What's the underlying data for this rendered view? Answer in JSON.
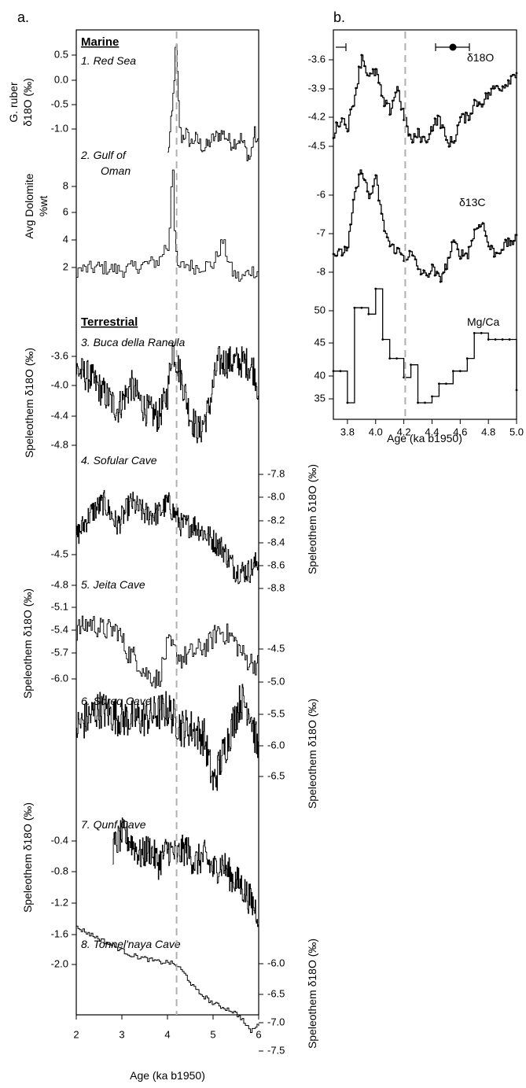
{
  "panel_a": {
    "label": "a.",
    "xlabel": "Age (ka b1950)",
    "xticks": [
      "2",
      "3",
      "4",
      "5",
      "6"
    ],
    "marine_heading": "Marine",
    "terrestrial_heading": "Terrestrial",
    "ylabels": {
      "g_ruber_line1": "G. ruber",
      "g_ruber_line2": "δ18O (‰)",
      "dolomite_line1": "Avg Dolomite",
      "dolomite_line2": "%wt",
      "speleothem": "Speleothem δ18O (‰)"
    },
    "records": [
      {
        "name": "1. Red Sea",
        "yticks": [
          "0.5",
          "0.0",
          "-0.5",
          "-1.0"
        ]
      },
      {
        "name": "2. Gulf of Oman",
        "name_line1": "2. Gulf of",
        "name_line2": "Oman",
        "yticks": [
          "8",
          "6",
          "4",
          "2"
        ]
      },
      {
        "name": "3. Buca della Ranella",
        "yticks": [
          "-3.6",
          "-4.0",
          "-4.4",
          "-4.8"
        ]
      },
      {
        "name": "4. Sofular Cave",
        "yticks": [
          "-7.8",
          "-8.0",
          "-8.2",
          "-8.4",
          "-8.6",
          "-8.8"
        ]
      },
      {
        "name": "5. Jeita Cave",
        "yticks": [
          "-4.5",
          "-4.8",
          "-5.1",
          "-5.4",
          "-5.7",
          "-6.0"
        ]
      },
      {
        "name": "6. Soreq Cave",
        "yticks": [
          "-4.5",
          "-5.0",
          "-5.5",
          "-6.0",
          "-6.5"
        ]
      },
      {
        "name": "7. Qunf Cave",
        "yticks": [
          "-0.4",
          "-0.8",
          "-1.2",
          "-1.6",
          "-2.0"
        ]
      },
      {
        "name": "8. Tonnel'naya Cave",
        "yticks": [
          "-6.0",
          "-6.5",
          "-7.0",
          "-7.5"
        ]
      }
    ]
  },
  "panel_b": {
    "label": "b.",
    "xlabel": "Age (ka b1950)",
    "xticks": [
      "3.8",
      "4.0",
      "4.2",
      "4.4",
      "4.6",
      "4.8",
      "5.0"
    ],
    "series_labels": {
      "d18o": "δ18O",
      "d13c": "δ13C",
      "mgca": "Mg/Ca"
    },
    "d18o_yticks": [
      "-3.6",
      "-3.9",
      "-4.2",
      "-4.5"
    ],
    "d13c_yticks": [
      "-6",
      "-7",
      "-8"
    ],
    "mgca_yticks": [
      "50",
      "45",
      "40",
      "35"
    ]
  },
  "colors": {
    "line": "#000000",
    "event_line": "#b0b0b0"
  },
  "chart_data": [
    {
      "type": "line",
      "panel": "a",
      "xlabel": "Age (ka b1950)",
      "xlim": [
        2,
        6
      ],
      "event_line_x": 4.2,
      "series": [
        {
          "name": "1. Red Sea",
          "ylabel": "G. ruber δ18O (‰)",
          "ylim": [
            -1.5,
            0.9
          ],
          "x": [
            4.0,
            4.05,
            4.1,
            4.15,
            4.18,
            4.2,
            4.25,
            4.3,
            4.4,
            4.5,
            4.6,
            4.8,
            5.0,
            5.2,
            5.4,
            5.6,
            5.8,
            5.9,
            6.0
          ],
          "y": [
            -1.3,
            -0.9,
            -0.5,
            0.3,
            0.85,
            0.4,
            -0.7,
            -1.0,
            -0.9,
            -1.1,
            -1.0,
            -1.2,
            -1.0,
            -0.9,
            -1.1,
            -1.0,
            -1.4,
            -0.9,
            -1.2
          ]
        },
        {
          "name": "2. Gulf of Oman",
          "ylabel": "Avg Dolomite %wt",
          "ylim": [
            0.5,
            10
          ],
          "x": [
            2.0,
            2.5,
            3.0,
            3.5,
            3.8,
            3.95,
            4.0,
            4.05,
            4.1,
            4.15,
            4.2,
            4.4,
            4.6,
            5.0,
            5.2,
            5.4,
            5.6,
            5.8,
            6.0
          ],
          "y": [
            1.6,
            1.8,
            1.6,
            2.0,
            2.2,
            3.2,
            3.0,
            5.2,
            9.6,
            3.6,
            1.7,
            2.0,
            1.8,
            2.0,
            3.5,
            1.5,
            1.0,
            1.6,
            1.5
          ]
        },
        {
          "name": "3. Buca della Ranella",
          "ylabel": "Speleothem δ18O (‰)",
          "ylim": [
            -4.95,
            -3.45
          ],
          "x": [
            2.0,
            2.3,
            2.6,
            2.9,
            3.2,
            3.5,
            3.8,
            4.0,
            4.1,
            4.3,
            4.5,
            4.7,
            4.9,
            5.1,
            5.3,
            5.5,
            5.7,
            5.9,
            6.0
          ],
          "y": [
            -3.9,
            -4.0,
            -4.2,
            -4.4,
            -4.1,
            -4.4,
            -4.5,
            -4.2,
            -3.6,
            -4.0,
            -4.5,
            -4.7,
            -4.4,
            -3.8,
            -3.8,
            -3.8,
            -3.8,
            -3.9,
            -4.2
          ]
        },
        {
          "name": "4. Sofular Cave",
          "ylabel": "Speleothem δ18O (‰)",
          "ylim": [
            -8.8,
            -7.7
          ],
          "x": [
            2.0,
            2.3,
            2.6,
            2.9,
            3.2,
            3.5,
            3.8,
            4.0,
            4.3,
            4.6,
            4.9,
            5.2,
            5.5,
            5.8,
            6.0
          ],
          "y": [
            -8.3,
            -8.1,
            -8.0,
            -8.2,
            -8.0,
            -8.1,
            -8.1,
            -8.0,
            -8.2,
            -8.2,
            -8.3,
            -8.4,
            -8.6,
            -8.6,
            -8.5
          ]
        },
        {
          "name": "5. Jeita Cave",
          "ylabel": "Speleothem δ18O (‰)",
          "ylim": [
            -6.05,
            -4.45
          ],
          "x": [
            2.0,
            2.3,
            2.6,
            2.9,
            3.1,
            3.3,
            3.5,
            3.8,
            4.0,
            4.3,
            4.6,
            4.9,
            5.1,
            5.4,
            5.7,
            6.0
          ],
          "y": [
            -4.9,
            -4.8,
            -4.9,
            -4.9,
            -5.2,
            -5.3,
            -5.5,
            -5.6,
            -5.1,
            -5.3,
            -5.2,
            -5.1,
            -4.9,
            -5.0,
            -5.3,
            -5.4
          ]
        },
        {
          "name": "6. Soreq Cave",
          "ylabel": "Speleothem δ18O (‰)",
          "ylim": [
            -6.55,
            -4.45
          ],
          "x": [
            2.0,
            2.5,
            3.0,
            3.5,
            4.0,
            4.3,
            4.5,
            4.8,
            5.0,
            5.2,
            5.4,
            5.6,
            5.8,
            6.0
          ],
          "y": [
            -5.5,
            -5.3,
            -5.4,
            -5.4,
            -5.3,
            -5.5,
            -5.5,
            -5.6,
            -6.1,
            -5.8,
            -5.5,
            -5.2,
            -5.3,
            -5.8
          ]
        },
        {
          "name": "7. Qunf Cave",
          "ylabel": "Speleothem δ18O (‰)",
          "ylim": [
            -2.2,
            -0.3
          ],
          "x": [
            2.8,
            3.0,
            3.2,
            3.4,
            3.6,
            3.8,
            4.0,
            4.2,
            4.4,
            4.6,
            4.8,
            5.0,
            5.2,
            5.4,
            5.6,
            5.8,
            6.0
          ],
          "y": [
            -1.1,
            -0.9,
            -1.0,
            -1.2,
            -1.1,
            -1.3,
            -1.1,
            -1.2,
            -1.1,
            -1.3,
            -1.2,
            -1.4,
            -1.3,
            -1.5,
            -1.6,
            -1.8,
            -2.0
          ]
        },
        {
          "name": "8. Tonnel'naya Cave",
          "ylabel": "Speleothem δ18O (‰)",
          "ylim": [
            -7.6,
            -5.9
          ],
          "x": [
            2.0,
            2.3,
            2.6,
            2.9,
            3.2,
            3.5,
            3.8,
            4.0,
            4.2,
            4.4,
            4.6,
            4.8,
            5.0,
            5.2,
            5.4,
            5.6,
            5.8,
            6.0
          ],
          "y": [
            -6.0,
            -6.1,
            -6.2,
            -6.3,
            -6.4,
            -6.45,
            -6.5,
            -6.5,
            -6.55,
            -6.7,
            -6.9,
            -7.0,
            -7.1,
            -7.15,
            -7.2,
            -7.3,
            -7.5,
            -7.4
          ]
        }
      ]
    },
    {
      "type": "line",
      "panel": "b",
      "xlabel": "Age (ka b1950)",
      "xlim": [
        3.7,
        5.0
      ],
      "event_line_x": 4.21,
      "series": [
        {
          "name": "δ18O",
          "ylim": [
            -4.75,
            -3.35
          ],
          "x": [
            3.7,
            3.75,
            3.8,
            3.85,
            3.9,
            3.95,
            4.0,
            4.05,
            4.1,
            4.15,
            4.2,
            4.25,
            4.3,
            4.35,
            4.4,
            4.45,
            4.5,
            4.55,
            4.6,
            4.65,
            4.7,
            4.75,
            4.8,
            4.85,
            4.9,
            4.95,
            5.0
          ],
          "y": [
            -4.5,
            -4.3,
            -4.4,
            -4.0,
            -3.5,
            -3.8,
            -3.7,
            -4.1,
            -4.2,
            -3.9,
            -4.3,
            -4.6,
            -4.5,
            -4.6,
            -4.4,
            -4.3,
            -4.6,
            -4.6,
            -4.3,
            -4.3,
            -4.1,
            -4.1,
            -4.0,
            -3.9,
            -3.9,
            -3.8,
            -3.7
          ]
        },
        {
          "name": "δ13C",
          "ylim": [
            -8.5,
            -5.0
          ],
          "x": [
            3.7,
            3.75,
            3.8,
            3.85,
            3.9,
            3.95,
            4.0,
            4.05,
            4.1,
            4.15,
            4.2,
            4.25,
            4.3,
            4.35,
            4.4,
            4.45,
            4.5,
            4.55,
            4.6,
            4.65,
            4.7,
            4.75,
            4.8,
            4.85,
            4.9,
            4.95,
            5.0
          ],
          "y": [
            -7.6,
            -7.6,
            -7.4,
            -6.0,
            -5.3,
            -6.1,
            -5.6,
            -6.8,
            -7.4,
            -7.5,
            -7.7,
            -7.6,
            -8.0,
            -8.2,
            -8.0,
            -8.3,
            -7.9,
            -7.3,
            -7.6,
            -7.6,
            -7.0,
            -6.7,
            -7.4,
            -7.6,
            -7.4,
            -7.3,
            -7.2
          ]
        },
        {
          "name": "Mg/Ca",
          "ylim": [
            33,
            53.5
          ],
          "x": [
            3.7,
            3.75,
            3.8,
            3.85,
            3.9,
            3.95,
            4.0,
            4.05,
            4.1,
            4.15,
            4.2,
            4.25,
            4.3,
            4.35,
            4.4,
            4.45,
            4.5,
            4.55,
            4.6,
            4.65,
            4.7,
            4.75,
            4.8,
            4.85,
            4.9,
            4.95,
            5.0
          ],
          "y": [
            39,
            39,
            34,
            49,
            49,
            48,
            52,
            44,
            41,
            41,
            38,
            40,
            34,
            34,
            35,
            37,
            37,
            39,
            39,
            41,
            45,
            45,
            44,
            44,
            44,
            44,
            36
          ]
        }
      ]
    }
  ]
}
